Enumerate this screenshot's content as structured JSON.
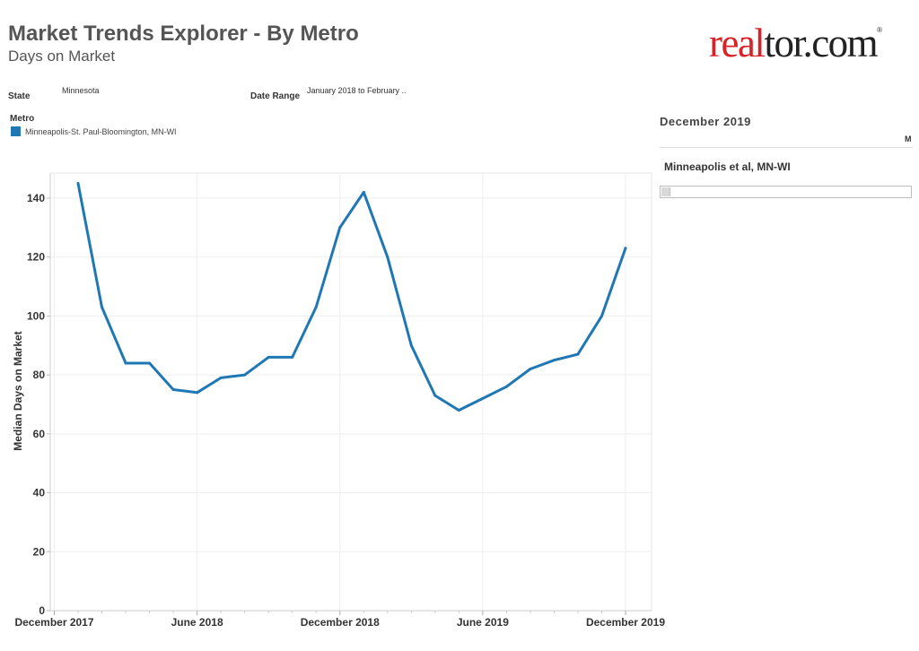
{
  "header": {
    "title": "Market Trends Explorer - By Metro",
    "subtitle": "Days on Market",
    "logo_text_red": "real",
    "logo_text_dark": "tor.com",
    "logo_mark": "®"
  },
  "filters": {
    "state_label": "State",
    "state_value": "Minnesota",
    "date_range_label": "Date Range",
    "date_range_value": "January 2018 to February ..",
    "metro_label": "Metro",
    "metro_value": "Minneapolis-St. Paul-Bloomington, MN-WI"
  },
  "side_panel": {
    "date": "December 2019",
    "clipped_text": "M",
    "metro_name": "Minneapolis et al, MN-WI"
  },
  "colors": {
    "series": "#1f77b4",
    "logo_red": "#d92228"
  },
  "chart_data": {
    "type": "line",
    "title": "",
    "xlabel": "",
    "ylabel": "Median Days on Market",
    "ylim": [
      0,
      150
    ],
    "yticks": [
      0,
      20,
      40,
      60,
      80,
      100,
      120,
      140
    ],
    "xticks": [
      {
        "month": 0,
        "label": "December 2017"
      },
      {
        "month": 6,
        "label": "June 2018"
      },
      {
        "month": 12,
        "label": "December 2018"
      },
      {
        "month": 18,
        "label": "June 2019"
      },
      {
        "month": 24,
        "label": "December 2019"
      }
    ],
    "grid": true,
    "series": [
      {
        "name": "Minneapolis-St. Paul-Bloomington, MN-WI",
        "x": [
          "2018-01",
          "2018-02",
          "2018-03",
          "2018-04",
          "2018-05",
          "2018-06",
          "2018-07",
          "2018-08",
          "2018-09",
          "2018-10",
          "2018-11",
          "2018-12",
          "2019-01",
          "2019-02",
          "2019-03",
          "2019-04",
          "2019-05",
          "2019-06",
          "2019-07",
          "2019-08",
          "2019-09",
          "2019-10",
          "2019-11",
          "2019-12"
        ],
        "values": [
          145,
          103,
          84,
          84,
          75,
          74,
          79,
          80,
          86,
          86,
          103,
          130,
          142,
          120,
          90,
          73,
          68,
          72,
          76,
          82,
          85,
          87,
          100,
          123
        ]
      }
    ]
  }
}
